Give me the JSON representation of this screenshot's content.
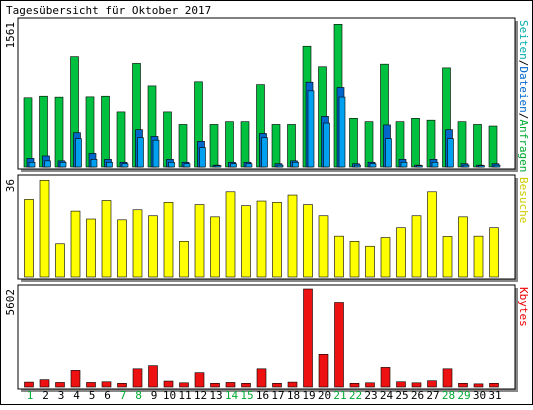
{
  "chart_data": {
    "type": "bar",
    "title": "Tagesübersicht für Oktober 2017",
    "days": [
      "1",
      "2",
      "3",
      "4",
      "5",
      "6",
      "7",
      "8",
      "9",
      "10",
      "11",
      "12",
      "13",
      "14",
      "15",
      "16",
      "17",
      "18",
      "19",
      "20",
      "21",
      "22",
      "23",
      "24",
      "25",
      "26",
      "27",
      "28",
      "29",
      "30",
      "31"
    ],
    "weekend_days": [
      "1",
      "7",
      "8",
      "14",
      "15",
      "21",
      "22",
      "28",
      "29"
    ],
    "panels": [
      {
        "id": "requests",
        "max_label": "1561",
        "ymax": 1561,
        "legend": [
          {
            "text": "Anfragen",
            "color": "#00aa33"
          },
          {
            "text": "/",
            "color": "#000000"
          },
          {
            "text": "Dateien",
            "color": "#0066cc"
          },
          {
            "text": "/",
            "color": "#000000"
          },
          {
            "text": "Seiten",
            "color": "#00aaaa"
          }
        ],
        "series": [
          {
            "name": "Anfragen",
            "color": "#00c040",
            "values": [
              745,
              762,
              752,
              1188,
              755,
              762,
              593,
              1115,
              873,
              593,
              458,
              917,
              458,
              488,
              488,
              887,
              458,
              458,
              1300,
              1079,
              1536,
              524,
              488,
              1107,
              488,
              524,
              504,
              1067,
              488,
              458,
              441
            ]
          },
          {
            "name": "Dateien",
            "color": "#00a0f0",
            "values": [
              93,
              119,
              66,
              369,
              146,
              82,
              51,
              402,
              329,
              82,
              51,
              276,
              20,
              51,
              51,
              361,
              35,
              66,
              913,
              545,
              856,
              35,
              51,
              453,
              82,
              20,
              82,
              402,
              35,
              20,
              35
            ]
          },
          {
            "name": "Seiten",
            "color": "#00a0f0",
            "values": [
              51,
              66,
              51,
              305,
              82,
              51,
              35,
              315,
              289,
              51,
              35,
              208,
              15,
              35,
              35,
              315,
              20,
              51,
              820,
              473,
              753,
              20,
              35,
              305,
              51,
              15,
              51,
              305,
              20,
              15,
              20
            ]
          }
        ]
      },
      {
        "id": "visits",
        "max_label": "36",
        "ymax": 36,
        "legend": [
          {
            "text": "Besuche",
            "color": "#cccc00"
          }
        ],
        "series": [
          {
            "name": "Besuche",
            "color": "#ffff00",
            "values": [
              28.5,
              35.5,
              12.2,
              24.2,
              21.3,
              28.1,
              21.0,
              24.7,
              22.5,
              27.4,
              13.1,
              26.6,
              22.1,
              31.3,
              26.2,
              27.9,
              27.4,
              30.1,
              26.6,
              22.5,
              15.0,
              13.1,
              11.3,
              14.5,
              18.1,
              22.5,
              31.3,
              14.9,
              22.1,
              15.0,
              18.1
            ]
          }
        ]
      },
      {
        "id": "kbytes",
        "max_label": "5602",
        "ymax": 5602,
        "legend": [
          {
            "text": "Kbytes",
            "color": "#ee0000"
          }
        ],
        "series": [
          {
            "name": "Kbytes",
            "color": "#ee1111",
            "values": [
              280,
              420,
              260,
              950,
              260,
              300,
              210,
              1040,
              1220,
              340,
              240,
              820,
              210,
              260,
              210,
              1040,
              210,
              280,
              5602,
              1870,
              4830,
              210,
              240,
              1120,
              300,
              240,
              360,
              1040,
              210,
              180,
              210
            ]
          }
        ]
      }
    ]
  }
}
